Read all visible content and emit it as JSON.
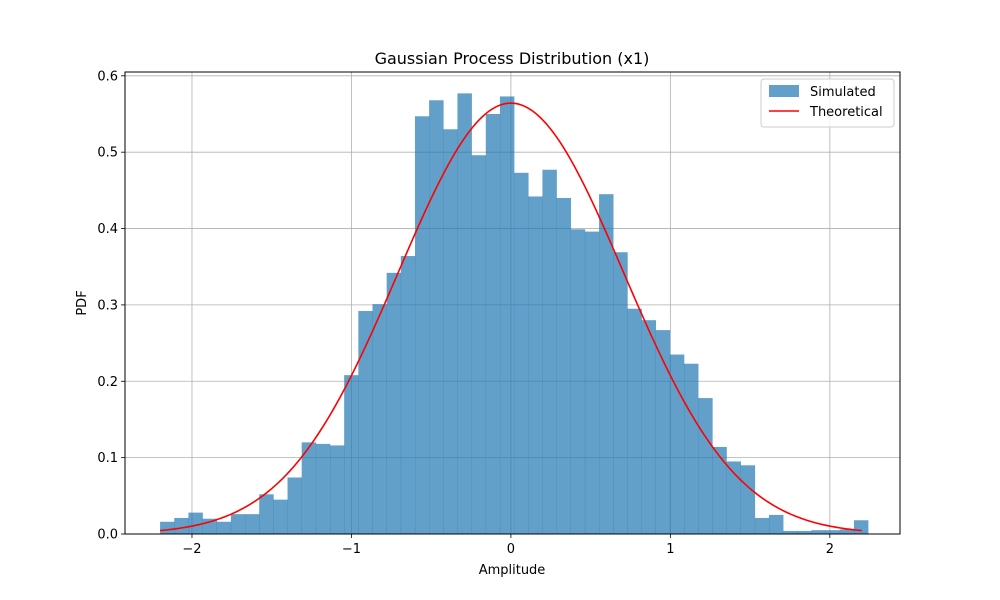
{
  "chart_data": {
    "type": "bar",
    "title": "Gaussian Process Distribution (x1)",
    "xlabel": "Amplitude",
    "ylabel": "PDF",
    "xlim": [
      -2.42,
      2.44
    ],
    "ylim": [
      0,
      0.605
    ],
    "grid": true,
    "legend_position": "top-right",
    "xticks": [
      -2,
      -1,
      0,
      1,
      2
    ],
    "yticks": [
      0.0,
      0.1,
      0.2,
      0.3,
      0.4,
      0.5,
      0.6
    ],
    "xtick_labels": [
      "−2",
      "−1",
      "0",
      "1",
      "2"
    ],
    "ytick_labels": [
      "0.0",
      "0.1",
      "0.2",
      "0.3",
      "0.4",
      "0.5",
      "0.6"
    ],
    "series": [
      {
        "name": "Simulated",
        "kind": "histogram",
        "color": "#1f77b4",
        "opacity": 0.7,
        "bin_start": -2.2,
        "bin_width": 0.0888,
        "values": [
          0.016,
          0.021,
          0.028,
          0.02,
          0.016,
          0.026,
          0.026,
          0.052,
          0.045,
          0.074,
          0.12,
          0.118,
          0.116,
          0.208,
          0.292,
          0.301,
          0.342,
          0.364,
          0.547,
          0.568,
          0.53,
          0.577,
          0.496,
          0.55,
          0.573,
          0.473,
          0.442,
          0.477,
          0.44,
          0.399,
          0.396,
          0.445,
          0.369,
          0.295,
          0.28,
          0.267,
          0.235,
          0.223,
          0.178,
          0.114,
          0.095,
          0.09,
          0.021,
          0.025,
          0.004,
          0.004,
          0.005,
          0.005,
          0.006,
          0.018
        ]
      },
      {
        "name": "Theoretical",
        "kind": "line",
        "color": "#ff0000",
        "function": "normal_pdf",
        "mean": 0,
        "std": 0.707,
        "x_range": [
          -2.2,
          2.2
        ],
        "points": 200
      }
    ]
  }
}
